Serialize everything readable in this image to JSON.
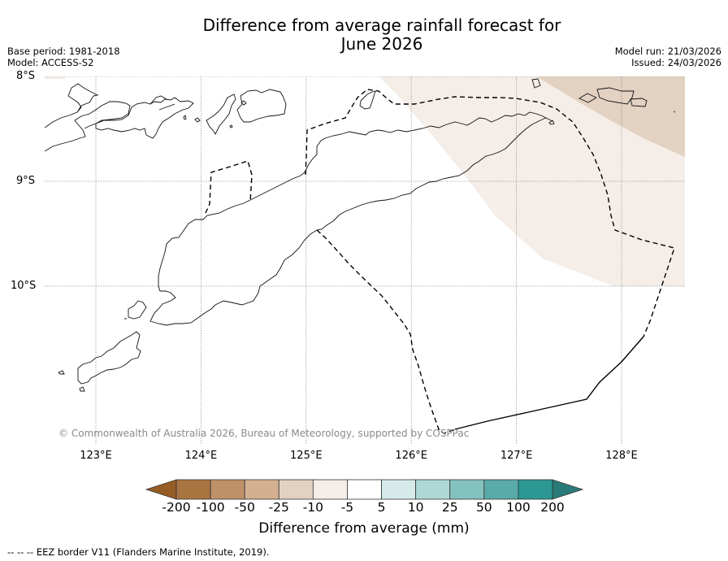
{
  "title_line1": "Difference from average rainfall forecast for",
  "title_line2": "June 2026",
  "meta": {
    "base_period": "Base period: 1981-2018",
    "model": "Model: ACCESS-S2",
    "model_run": "Model run: 21/03/2026",
    "issued": "Issued: 24/03/2026"
  },
  "copyright": "© Commonwealth of Australia 2026, Bureau of Meteorology, supported by COSPPac",
  "footer": "--  --  -- EEZ border V11 (Flanders Marine Institute, 2019).",
  "map": {
    "lat_labels": [
      "8°S",
      "9°S",
      "10°S"
    ],
    "lon_labels": [
      "123°E",
      "124°E",
      "125°E",
      "126°E",
      "127°E",
      "128°E"
    ],
    "lat_values": [
      -8,
      -9,
      -10
    ],
    "lon_values": [
      123,
      124,
      125,
      126,
      127,
      128
    ],
    "extent": {
      "lon_min": 122.55,
      "lon_max": 128.6,
      "lat_max": -8.0,
      "lat_min": -11.5
    },
    "regions": [
      {
        "name": "anomaly -10 to -5 mm",
        "category": "-10 to -5",
        "color": "#f4ede8"
      },
      {
        "name": "anomaly -25 to -10 mm",
        "category": "-25 to -10",
        "color": "#e3d1c1"
      }
    ],
    "eez_border_style": "dashed",
    "coastline_color": "#000000",
    "gridline_color": "#9a9a9a"
  },
  "colorbar": {
    "label": "Difference from average (mm)",
    "ticks": [
      "-200",
      "-100",
      "-50",
      "-25",
      "-10",
      "-5",
      "5",
      "10",
      "25",
      "50",
      "100",
      "200"
    ],
    "colors": [
      "#a87440",
      "#bf9169",
      "#d4b08f",
      "#e3d1c1",
      "#f4ede8",
      "#ffffff",
      "#d6ebe9",
      "#aed8d6",
      "#84c2bf",
      "#58aba8",
      "#2c9894"
    ],
    "extend_low_color": "#955c26",
    "extend_high_color": "#2a7a77"
  }
}
